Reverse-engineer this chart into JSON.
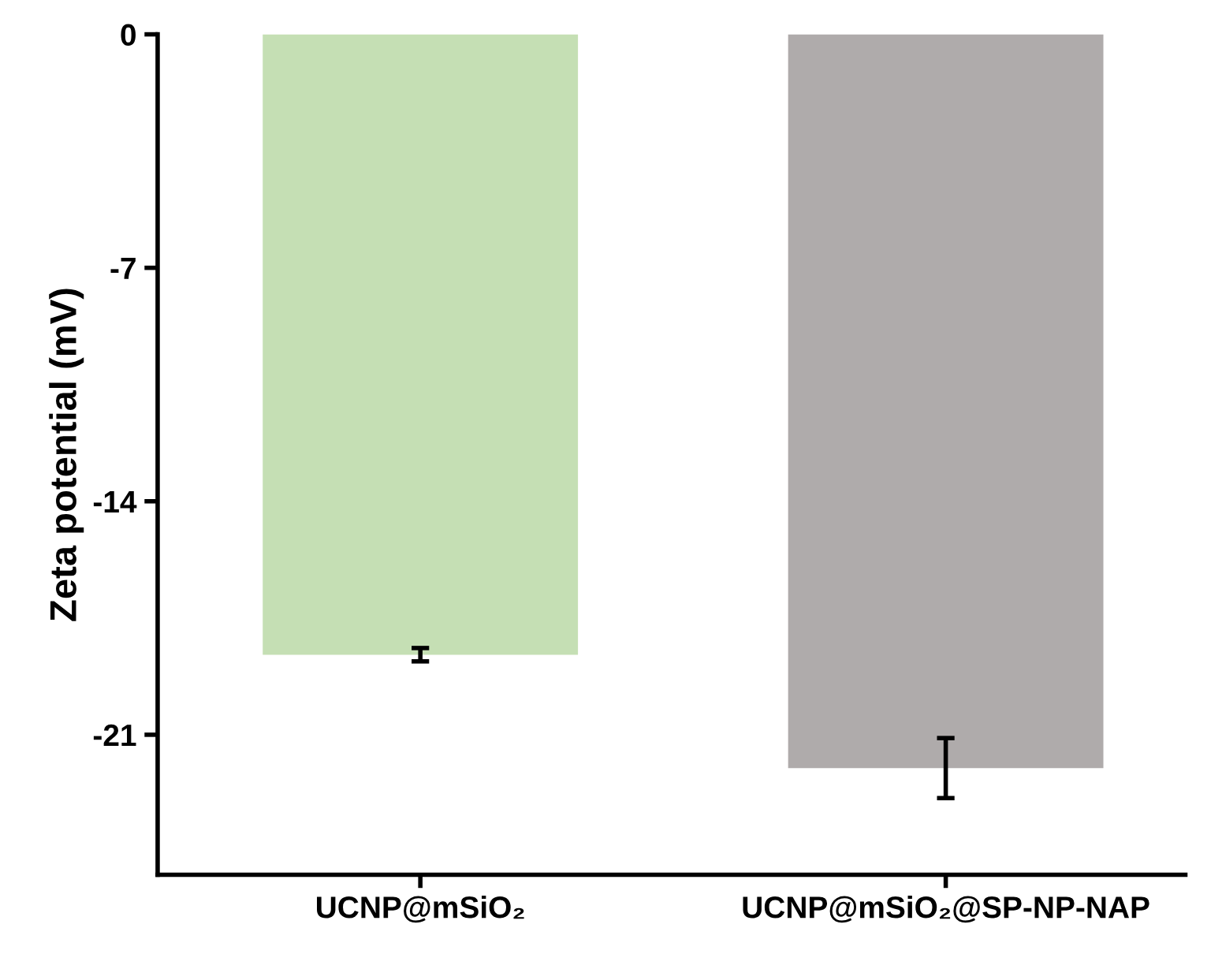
{
  "chart_data": {
    "type": "bar",
    "ylabel": "Zeta potential (mV)",
    "categories": [
      "UCNP@mSiO₂",
      "UCNP@mSiO₂@SP-NP-NAP"
    ],
    "values": [
      -18.6,
      -22.0
    ],
    "colors": [
      "#c5dfb4",
      "#afabab"
    ],
    "errors": [
      0.2,
      0.9
    ],
    "ylim": [
      -25.2,
      0
    ],
    "yticks": [
      0,
      -7,
      -14,
      -21
    ],
    "grid": false
  }
}
